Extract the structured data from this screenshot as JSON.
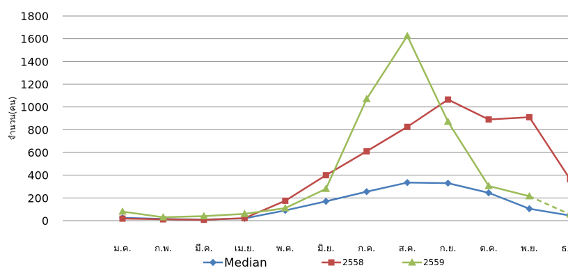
{
  "chart_data": {
    "type": "line",
    "title": "",
    "xlabel": "",
    "ylabel": "จำนวน(คน)",
    "ylim": [
      0,
      1800
    ],
    "yticks": [
      0,
      200,
      400,
      600,
      800,
      1000,
      1200,
      1400,
      1600,
      1800
    ],
    "grid": true,
    "legend_position": "bottom",
    "categories": [
      "ม.ค.",
      "ก.พ.",
      "มี.ค.",
      "เม.ย.",
      "พ.ค.",
      "มิ.ย.",
      "ก.ค.",
      "ส.ค.",
      "ก.ย.",
      "ต.ค.",
      "พ.ย.",
      "ธ.ค."
    ],
    "series": [
      {
        "name": "Median",
        "color": "#4a7ebb",
        "marker": "diamond",
        "values": [
          25,
          15,
          10,
          20,
          90,
          170,
          255,
          335,
          330,
          245,
          105,
          45
        ]
      },
      {
        "name": "2558",
        "color": "#be4b48",
        "marker": "square",
        "values": [
          18,
          12,
          8,
          22,
          175,
          400,
          610,
          825,
          1065,
          890,
          910,
          365
        ]
      },
      {
        "name": "2559",
        "color": "#9bbb59",
        "marker": "triangle",
        "values": [
          80,
          30,
          40,
          60,
          110,
          280,
          1070,
          1625,
          870,
          305,
          215,
          55
        ],
        "dashed_last_segment": true
      }
    ]
  }
}
